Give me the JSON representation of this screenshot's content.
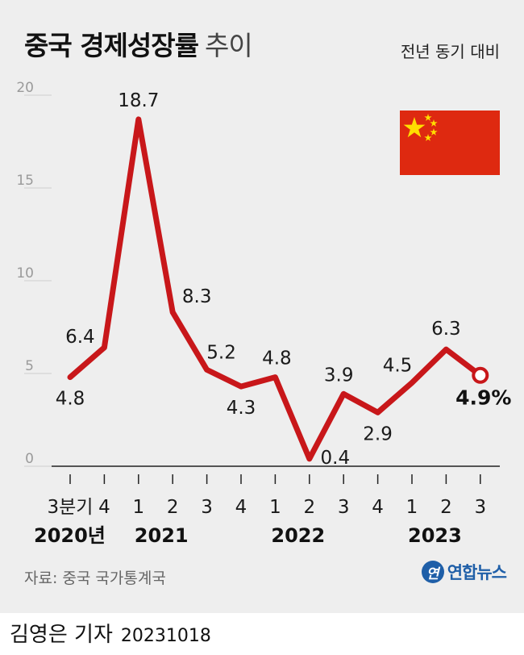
{
  "header": {
    "title_bold": "중국 경제성장률",
    "title_light": "추이",
    "subtitle": "전년 동기 대비"
  },
  "flag": {
    "icon": "china-flag-icon",
    "colors": {
      "red": "#de2910",
      "yellow": "#ffde00"
    }
  },
  "chart_data": {
    "type": "line",
    "title": "중국 경제성장률 추이",
    "ylabel": "",
    "xlabel": "",
    "ylim": [
      0,
      20
    ],
    "yticks": [
      0,
      5,
      10,
      15,
      20
    ],
    "grid": false,
    "line_color": "#c8171a",
    "categories": [
      "3분기",
      "4",
      "1",
      "2",
      "3",
      "4",
      "1",
      "2",
      "3",
      "4",
      "1",
      "2",
      "3"
    ],
    "years": [
      {
        "label": "2020년",
        "start_index": 0
      },
      {
        "label": "2021",
        "start_index": 2
      },
      {
        "label": "2022",
        "start_index": 6
      },
      {
        "label": "2023",
        "start_index": 10
      }
    ],
    "series": [
      {
        "values": [
          4.8,
          6.4,
          18.7,
          8.3,
          5.2,
          4.3,
          4.8,
          0.4,
          3.9,
          2.9,
          4.5,
          6.3,
          4.9
        ]
      }
    ],
    "value_labels": [
      "4.8",
      "6.4",
      "18.7",
      "8.3",
      "5.2",
      "4.3",
      "4.8",
      "0.4",
      "3.9",
      "2.9",
      "4.5",
      "6.3",
      "4.9%"
    ]
  },
  "source": "자료: 중국 국가통계국",
  "logo": {
    "text": "연합뉴스",
    "mark": "연",
    "color": "#1f5fa8"
  },
  "footer": {
    "reporter": "김영은 기자",
    "date": "20231018"
  }
}
